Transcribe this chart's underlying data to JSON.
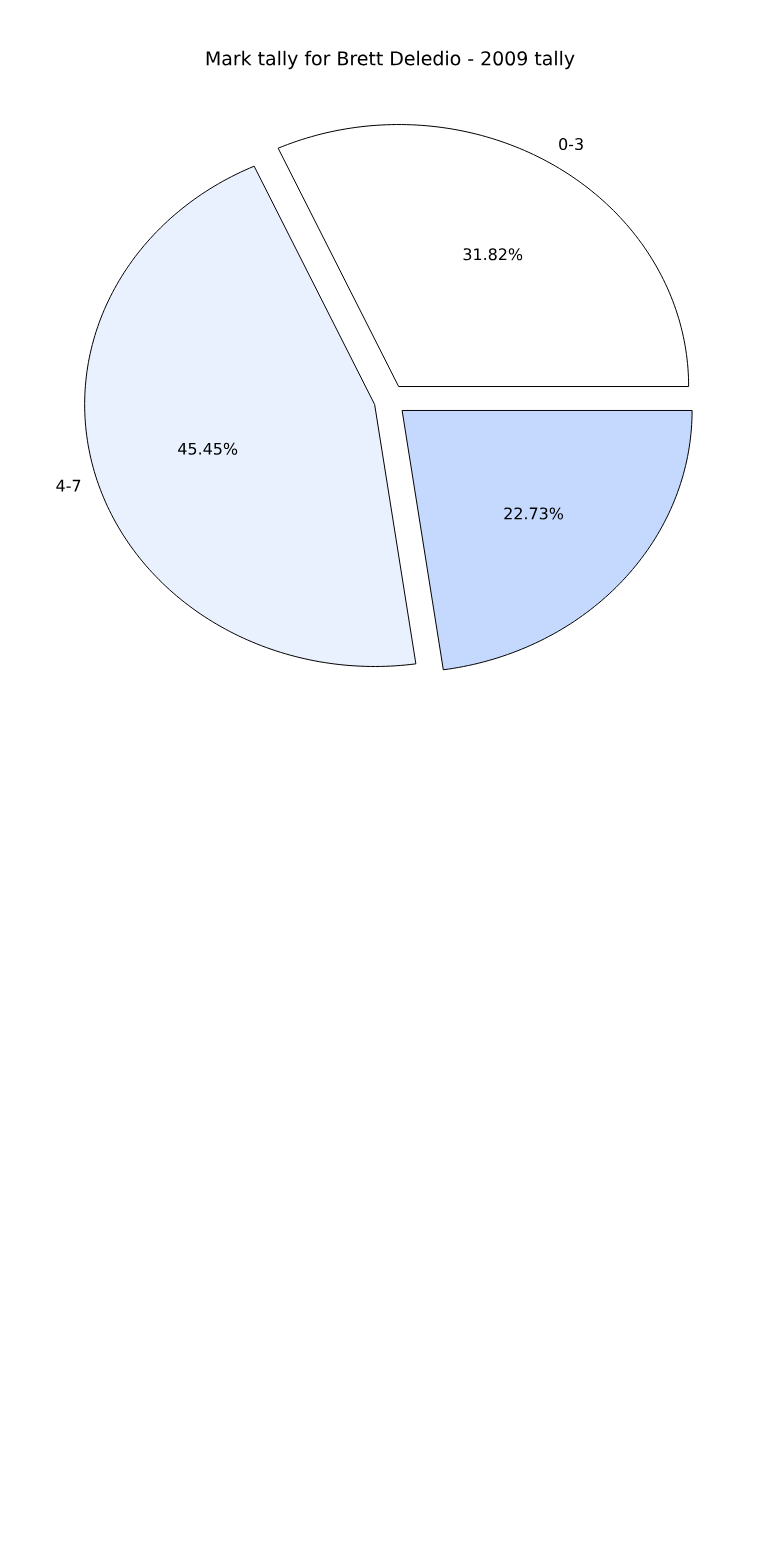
{
  "chart_data": {
    "type": "pie",
    "title": "Mark tally for Brett Deledio - 2009 tally",
    "categories": [
      "0-3",
      "4-7",
      null
    ],
    "values": [
      31.82,
      45.45,
      22.73
    ],
    "value_labels": [
      "31.82%",
      "45.45%",
      "22.73%"
    ],
    "colors": [
      "#ffffff",
      "#eaf1fe",
      "#c4d9fd"
    ]
  }
}
